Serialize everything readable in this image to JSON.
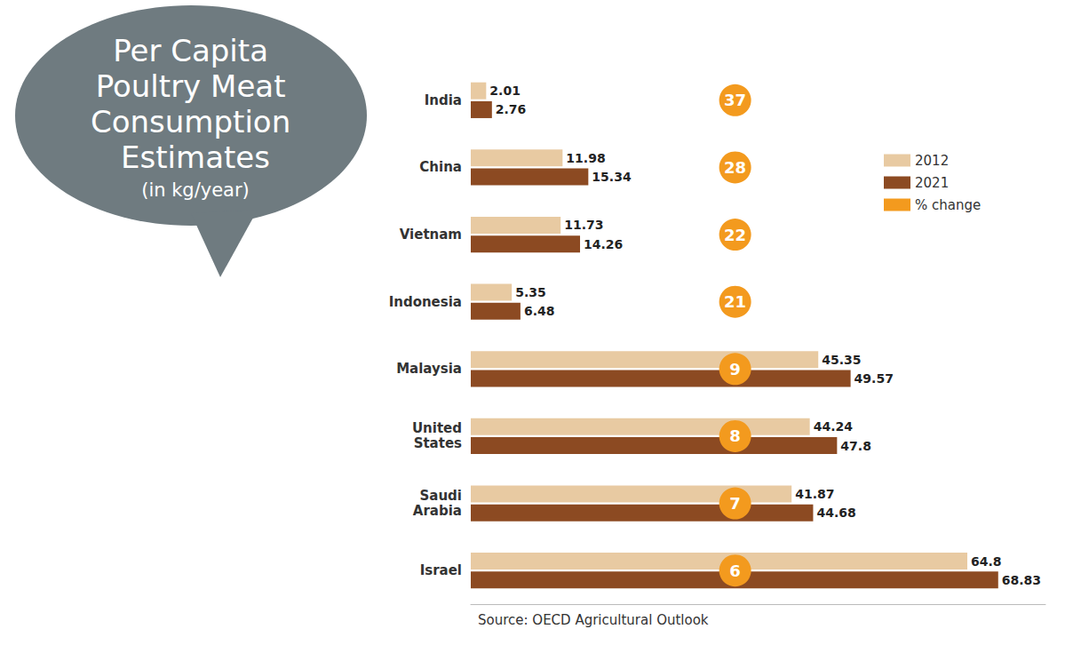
{
  "chart_data": {
    "type": "bar",
    "orientation": "horizontal",
    "title": "Per Capita Poultry Meat Consumption Estimates",
    "subtitle": "(in kg/year)",
    "categories": [
      "India",
      "China",
      "Vietnam",
      "Indonesia",
      "Malaysia",
      "United States",
      "Saudi Arabia",
      "Israel"
    ],
    "series": [
      {
        "name": "2012",
        "color": "#e8caa2",
        "values": [
          2.01,
          11.98,
          11.73,
          5.35,
          45.35,
          44.24,
          41.87,
          64.8
        ]
      },
      {
        "name": "2021",
        "color": "#8c4a22",
        "values": [
          2.76,
          15.34,
          14.26,
          6.48,
          49.57,
          47.8,
          44.68,
          68.83
        ]
      },
      {
        "name": "% change",
        "type": "scatter",
        "marker": "circle",
        "color": "#f39a1e",
        "values": [
          37,
          28,
          22,
          21,
          9,
          8,
          7,
          6
        ]
      }
    ],
    "xlim": [
      0,
      75
    ],
    "data_labels": true,
    "tick_labels": "y",
    "legend": "right",
    "annotations": [
      "Source: OECD Agricultural Outlook"
    ]
  }
}
